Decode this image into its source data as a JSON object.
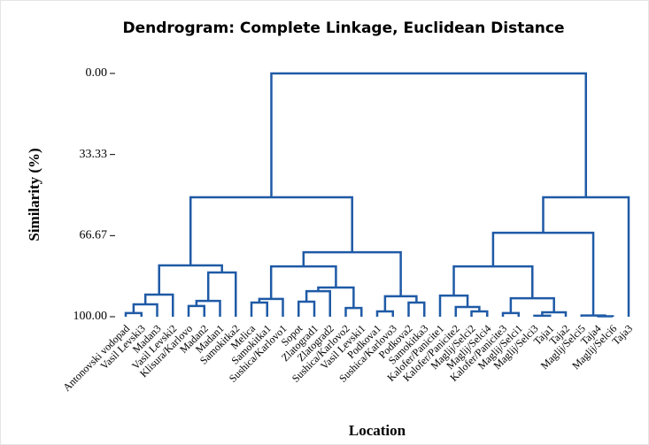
{
  "chart_data": {
    "type": "dendrogram",
    "title": "Dendrogram: Complete Linkage, Euclidean Distance",
    "x_label": "Location",
    "y_label": "Similarity (%)",
    "color": "#1f5aa6",
    "categories": [
      "Antonovski vodopad",
      "Vasil Levski3",
      "Madan3",
      "Vasil Levski2",
      "Klisura/Karlovo",
      "Madan2",
      "Madan1",
      "Samokitka2",
      "Melica",
      "Samokitka1",
      "Sushica/Karlovo1",
      "Sopot",
      "Zlatograd1",
      "Zlatograd2",
      "Sushica/Karlovo2",
      "Vasil Levski1",
      "Podkova1",
      "Sushica/Karlovo3",
      "Podkova2",
      "Samokitka3",
      "Kalofer/Panicite1",
      "Kalofer/Panicite2",
      "Maglij/Selci2",
      "Maglij/Selci4",
      "Kalofer/Panicite3",
      "Maglij/Selci1",
      "Maglij/Selci3",
      "Taja1",
      "Taja2",
      "Maglij/Selci5",
      "Taja4",
      "Maglij/Selci6",
      "Taja3"
    ],
    "links": [
      [
        0,
        1,
        98.5
      ],
      [
        33,
        2,
        94.9
      ],
      [
        34,
        3,
        90.9
      ],
      [
        4,
        5,
        95.6
      ],
      [
        36,
        6,
        93.5
      ],
      [
        37,
        7,
        81.8
      ],
      [
        35,
        38,
        78.9
      ],
      [
        8,
        9,
        94.2
      ],
      [
        40,
        10,
        92.7
      ],
      [
        11,
        12,
        93.8
      ],
      [
        42,
        13,
        89.5
      ],
      [
        14,
        15,
        96.4
      ],
      [
        43,
        44,
        88.0
      ],
      [
        41,
        45,
        79.3
      ],
      [
        16,
        17,
        97.8
      ],
      [
        18,
        19,
        94.2
      ],
      [
        47,
        48,
        91.6
      ],
      [
        46,
        49,
        73.5
      ],
      [
        39,
        50,
        50.9
      ],
      [
        22,
        23,
        97.8
      ],
      [
        21,
        52,
        96.0
      ],
      [
        20,
        53,
        91.3
      ],
      [
        24,
        25,
        98.5
      ],
      [
        26,
        27,
        99.6
      ],
      [
        56,
        28,
        98.2
      ],
      [
        55,
        57,
        92.4
      ],
      [
        54,
        58,
        79.3
      ],
      [
        30,
        31,
        99.8
      ],
      [
        29,
        60,
        99.5
      ],
      [
        59,
        61,
        65.5
      ],
      [
        62,
        32,
        50.9
      ],
      [
        51,
        63,
        0
      ]
    ],
    "ylim": [
      0,
      100
    ],
    "yticks": [
      {
        "value": 0,
        "label": "0.00"
      },
      {
        "value": 33.33,
        "label": "33.33"
      },
      {
        "value": 66.67,
        "label": "66.67"
      },
      {
        "value": 100,
        "label": "100.00"
      }
    ]
  }
}
